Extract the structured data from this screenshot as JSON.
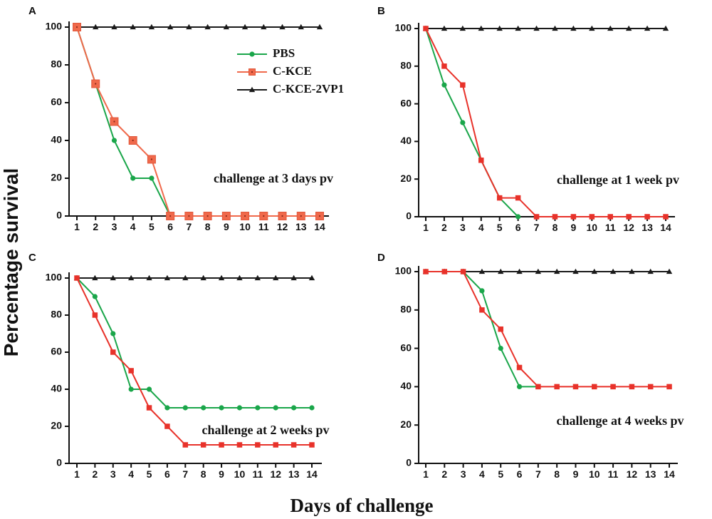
{
  "figure": {
    "ylabel": "Percentage survival",
    "xlabel": "Days of challenge"
  },
  "colors": {
    "PBS": "#1aa64a",
    "C-KCE": "#e8322a",
    "C-KCE-2VP1": "#1a1a1a",
    "C-KCE-A": "#f0694b"
  },
  "legend": [
    "PBS",
    "C-KCE",
    "C-KCE-2VP1"
  ],
  "chart_data": [
    {
      "panel": "A",
      "type": "line",
      "annotation": "challenge at 3 days pv",
      "x": [
        1,
        2,
        3,
        4,
        5,
        6,
        7,
        8,
        9,
        10,
        11,
        12,
        13,
        14
      ],
      "ylim": [
        0,
        100
      ],
      "yticks": [
        0,
        20,
        40,
        60,
        80,
        100
      ],
      "series": [
        {
          "name": "C-KCE-2VP1",
          "marker": "triangle",
          "values": [
            100,
            100,
            100,
            100,
            100,
            100,
            100,
            100,
            100,
            100,
            100,
            100,
            100,
            100
          ]
        },
        {
          "name": "PBS",
          "marker": "circle",
          "values": [
            100,
            70,
            40,
            20,
            20,
            0,
            0,
            0,
            0,
            0,
            0,
            0,
            0,
            0
          ]
        },
        {
          "name": "C-KCE",
          "marker": "square",
          "values": [
            100,
            70,
            50,
            40,
            30,
            0,
            0,
            0,
            0,
            0,
            0,
            0,
            0,
            0
          ]
        }
      ]
    },
    {
      "panel": "B",
      "type": "line",
      "annotation": "challenge at 1 week pv",
      "x": [
        1,
        2,
        3,
        4,
        5,
        6,
        7,
        8,
        9,
        10,
        11,
        12,
        13,
        14
      ],
      "ylim": [
        0,
        100
      ],
      "yticks": [
        0,
        20,
        40,
        60,
        80,
        100
      ],
      "series": [
        {
          "name": "C-KCE-2VP1",
          "marker": "triangle",
          "values": [
            100,
            100,
            100,
            100,
            100,
            100,
            100,
            100,
            100,
            100,
            100,
            100,
            100,
            100
          ]
        },
        {
          "name": "PBS",
          "marker": "circle",
          "values": [
            100,
            70,
            50,
            30,
            10,
            0,
            null,
            null,
            null,
            null,
            null,
            null,
            null,
            null
          ]
        },
        {
          "name": "C-KCE",
          "marker": "square",
          "values": [
            100,
            80,
            70,
            30,
            10,
            10,
            0,
            0,
            0,
            0,
            0,
            0,
            0,
            0
          ]
        }
      ]
    },
    {
      "panel": "C",
      "type": "line",
      "annotation": "challenge at 2 weeks pv",
      "x": [
        1,
        2,
        3,
        4,
        5,
        6,
        7,
        8,
        9,
        10,
        11,
        12,
        13,
        14
      ],
      "ylim": [
        0,
        100
      ],
      "yticks": [
        0,
        20,
        40,
        60,
        80,
        100
      ],
      "series": [
        {
          "name": "C-KCE-2VP1",
          "marker": "triangle",
          "values": [
            100,
            100,
            100,
            100,
            100,
            100,
            100,
            100,
            100,
            100,
            100,
            100,
            100,
            100
          ]
        },
        {
          "name": "PBS",
          "marker": "circle",
          "values": [
            100,
            90,
            70,
            40,
            40,
            30,
            30,
            30,
            30,
            30,
            30,
            30,
            30,
            30
          ]
        },
        {
          "name": "C-KCE",
          "marker": "square",
          "values": [
            100,
            80,
            60,
            50,
            30,
            20,
            10,
            10,
            10,
            10,
            10,
            10,
            10,
            10
          ]
        }
      ]
    },
    {
      "panel": "D",
      "type": "line",
      "annotation": "challenge at 4 weeks pv",
      "x": [
        1,
        2,
        3,
        4,
        5,
        6,
        7,
        8,
        9,
        10,
        11,
        12,
        13,
        14
      ],
      "ylim": [
        0,
        100
      ],
      "yticks": [
        0,
        20,
        40,
        60,
        80,
        100
      ],
      "series": [
        {
          "name": "C-KCE-2VP1",
          "marker": "triangle",
          "values": [
            100,
            100,
            100,
            100,
            100,
            100,
            100,
            100,
            100,
            100,
            100,
            100,
            100,
            100
          ]
        },
        {
          "name": "PBS",
          "marker": "circle",
          "values": [
            100,
            100,
            100,
            90,
            60,
            40,
            40,
            null,
            null,
            null,
            null,
            null,
            null,
            null
          ]
        },
        {
          "name": "C-KCE",
          "marker": "square",
          "values": [
            100,
            100,
            100,
            80,
            70,
            50,
            40,
            40,
            40,
            40,
            40,
            40,
            40,
            40
          ]
        }
      ]
    }
  ]
}
